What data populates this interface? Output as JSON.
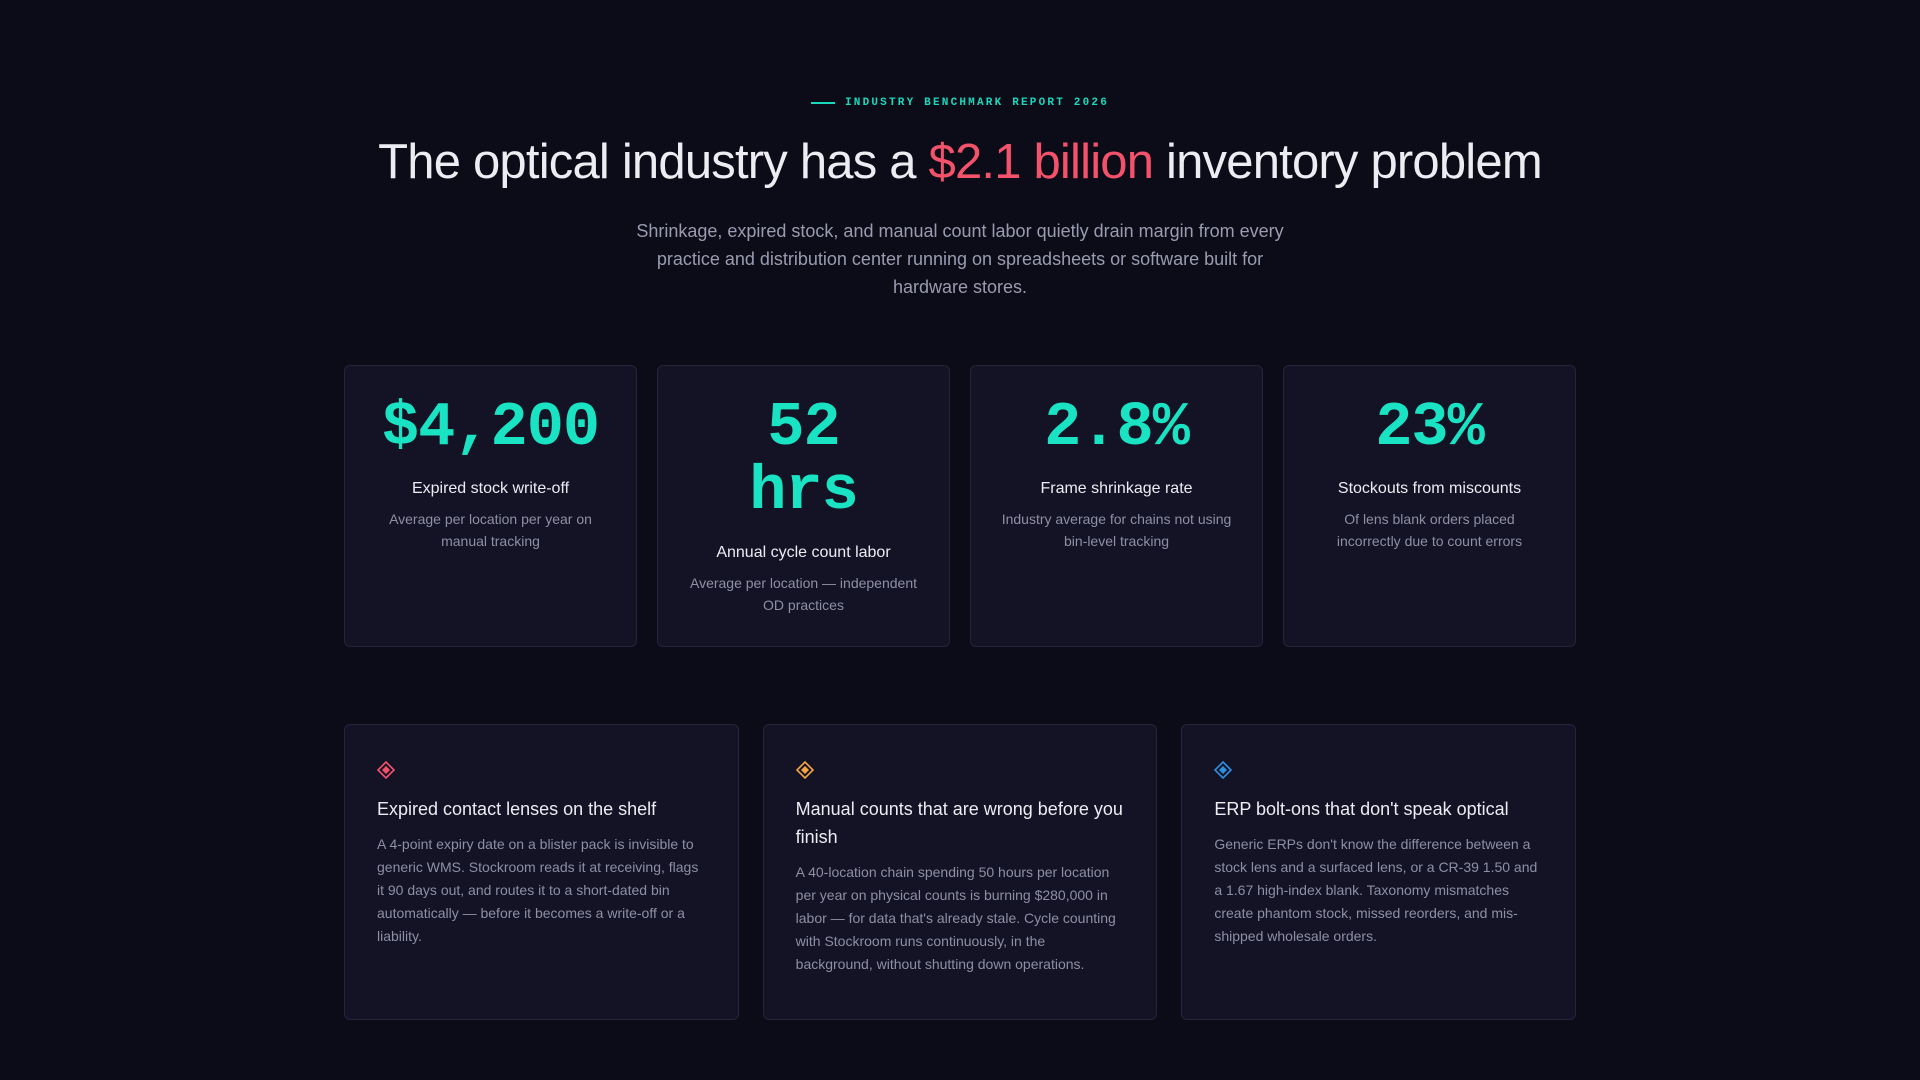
{
  "hero": {
    "eyebrow": "INDUSTRY BENCHMARK REPORT 2026",
    "headline_before": "The optical industry has a ",
    "headline_accent": "$2.1 billion",
    "headline_after": " inventory problem",
    "subhead": "Shrinkage, expired stock, and manual count labor quietly drain margin from every practice and distribution center running on spreadsheets or software built for hardware stores.",
    "accent_color": "#f4526b",
    "eyebrow_color": "#19d9bd"
  },
  "stats": [
    {
      "value": "$4,200",
      "title": "Expired stock write-off",
      "description": "Average per location per year on manual tracking"
    },
    {
      "value": "52 hrs",
      "title": "Annual cycle count labor",
      "description": "Average per location — independent OD practices"
    },
    {
      "value": "2.8%",
      "title": "Frame shrinkage rate",
      "description": "Industry average for chains not using bin-level tracking"
    },
    {
      "value": "23%",
      "title": "Stockouts from miscounts",
      "description": "Of lens blank orders placed incorrectly due to count errors"
    }
  ],
  "stat_value_color": "#19e3c2",
  "problems": [
    {
      "icon": "diamond-icon",
      "icon_color": "#f4526b",
      "title": "Expired contact lenses on the shelf",
      "body": "A 4-point expiry date on a blister pack is invisible to generic WMS. Stockroom reads it at receiving, flags it 90 days out, and routes it to a short-dated bin automatically — before it becomes a write-off or a liability."
    },
    {
      "icon": "diamond-icon",
      "icon_color": "#f5a53d",
      "title": "Manual counts that are wrong before you finish",
      "body": "A 40-location chain spending 50 hours per location per year on physical counts is burning $280,000 in labor — for data that's already stale. Cycle counting with Stockroom runs continuously, in the background, without shutting down operations."
    },
    {
      "icon": "diamond-icon",
      "icon_color": "#2e8fe0",
      "title": "ERP bolt-ons that don't speak optical",
      "body": "Generic ERPs don't know the difference between a stock lens and a surfaced lens, or a CR-39 1.50 and a 1.67 high-index blank. Taxonomy mismatches create phantom stock, missed reorders, and mis-shipped wholesale orders."
    }
  ]
}
